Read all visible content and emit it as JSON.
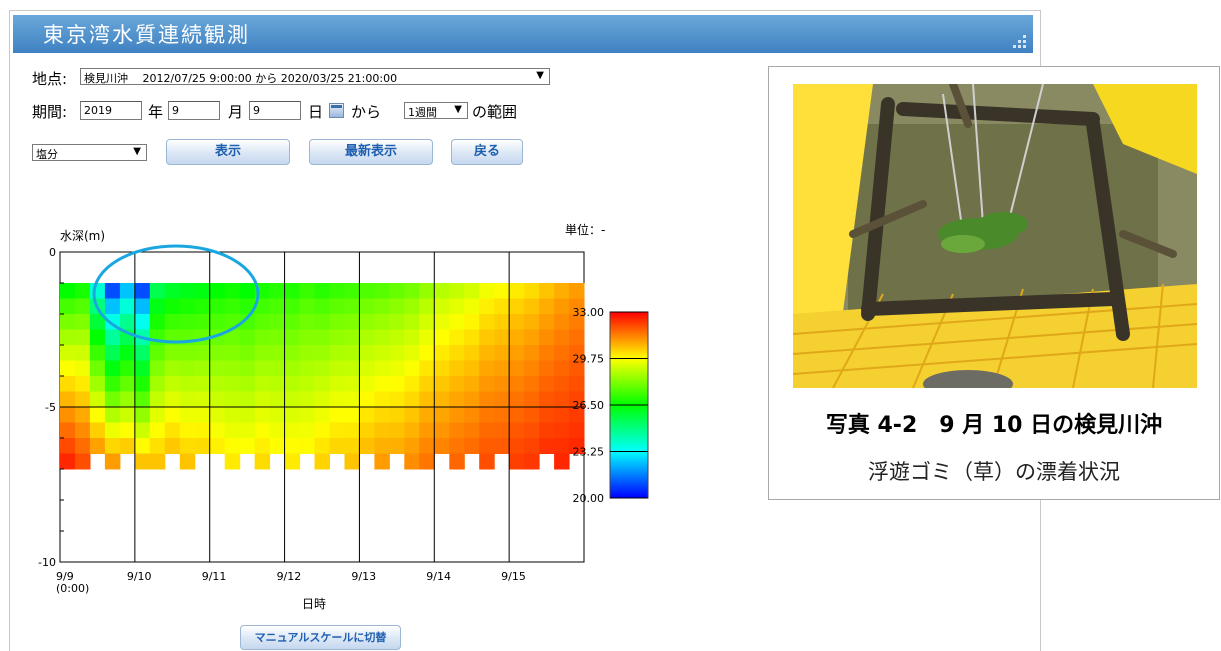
{
  "header": {
    "title": "東京湾水質連続観測"
  },
  "site": {
    "label": "地点:",
    "selected": "検見川沖　 2012/07/25 9:00:00 から 2020/03/25 21:00:00"
  },
  "period": {
    "label": "期間:",
    "year": "2019",
    "year_unit": "年",
    "month": "9",
    "month_unit": "月",
    "day": "9",
    "day_unit": "日",
    "from": "から",
    "range_selected": "1週間",
    "range_suffix": "の範囲"
  },
  "item_select": "塩分",
  "buttons": {
    "show": "表示",
    "latest": "最新表示",
    "back": "戻る",
    "manual_scale": "マニュアルスケールに切替"
  },
  "chart_data": {
    "type": "heatmap",
    "ylabel": "水深(m)",
    "unit_label": "単位：-",
    "xlabel": "日時",
    "x_ticks": [
      "9/9",
      "9/10",
      "9/11",
      "9/12",
      "9/13",
      "9/14",
      "9/15"
    ],
    "x_first_sub": "(0:00)",
    "y_ticks": [
      "0",
      "-5",
      "-10"
    ],
    "ylim": [
      -10,
      0
    ],
    "x_range_days": [
      0,
      7
    ],
    "colorbar": {
      "min": 20.0,
      "max": 33.0,
      "ticks": [
        "33.00",
        "29.75",
        "26.50",
        "23.25",
        "20.00"
      ],
      "colors": [
        "#ff0000",
        "#ffff00",
        "#00ff00",
        "#00ffff",
        "#0000ff"
      ]
    },
    "depth_rows": [
      -1.0,
      -1.5,
      -2.0,
      -2.5,
      -3.0,
      -3.5,
      -4.0,
      -4.5,
      -5.0,
      -5.5,
      -6.0,
      -6.5,
      -7.0
    ],
    "sample_days": [
      0.0,
      0.2,
      0.4,
      0.6,
      0.8,
      1.0,
      1.2,
      1.4,
      1.6,
      1.8,
      2.0,
      2.2,
      2.4,
      2.6,
      2.8,
      3.0,
      3.2,
      3.4,
      3.6,
      3.8,
      4.0,
      4.2,
      4.4,
      4.6,
      4.8,
      5.0,
      5.2,
      5.4,
      5.6,
      5.8,
      6.0,
      6.2,
      6.4,
      6.6,
      6.8,
      7.0
    ],
    "surface_values": [
      26.5,
      26.8,
      23.8,
      21.0,
      22.5,
      21.0,
      25.5,
      26.0,
      26.2,
      26.3,
      26.5,
      26.7,
      26.5,
      26.8,
      27.0,
      26.9,
      27.2,
      27.0,
      27.2,
      27.3,
      27.5,
      27.6,
      27.8,
      28.0,
      28.4,
      28.8,
      29.0,
      29.2,
      29.6,
      29.8,
      30.0,
      30.2,
      30.5,
      30.8,
      31.0,
      31.0
    ],
    "bottom_values": [
      32.5,
      32.0,
      31.5,
      31.0,
      31.0,
      30.5,
      30.5,
      30.8,
      30.5,
      30.5,
      30.2,
      30.0,
      30.0,
      30.2,
      30.0,
      30.0,
      30.0,
      30.3,
      30.5,
      30.5,
      30.8,
      31.0,
      31.0,
      31.2,
      31.5,
      31.5,
      31.7,
      31.8,
      32.0,
      32.0,
      32.2,
      32.3,
      32.5,
      32.5,
      32.6,
      32.8
    ],
    "bottom_depth": [
      -7.5,
      -7.6,
      -6.9,
      -7.6,
      -6.7,
      -7.0,
      -7.7,
      -6.7,
      -7.0,
      -6.5,
      -6.8,
      -7.2,
      -6.7,
      -7.5,
      -6.8,
      -7.4,
      -6.7,
      -7.0,
      -6.6,
      -7.5,
      -6.8,
      -7.5,
      -6.6,
      -7.0,
      -7.6,
      -6.8,
      -7.2,
      -6.8,
      -7.6,
      -6.8,
      -7.0,
      -7.5,
      -6.8,
      -7.0,
      -6.7,
      -6.7
    ]
  },
  "photo": {
    "caption": "写真 4-2　9 月 10 日の検見川沖",
    "subcaption": "浮遊ゴミ（草）の漂着状況"
  }
}
